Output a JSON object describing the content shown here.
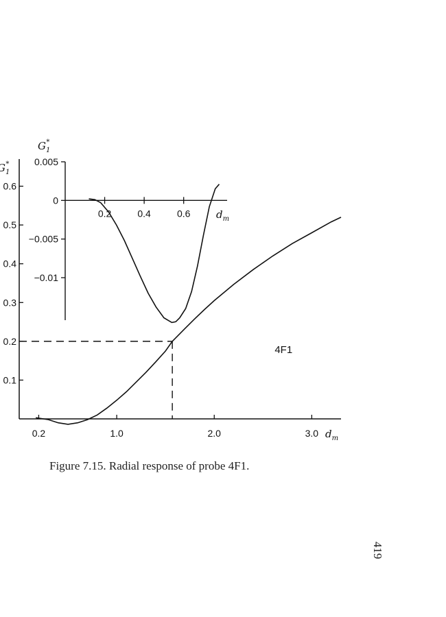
{
  "caption": "Figure 7.15. Radial response of probe 4F1.",
  "page_number": "419",
  "chart_data": [
    {
      "type": "line",
      "id": "main",
      "ylabel_base": "G",
      "ylabel_sub": "1",
      "ylabel_sup": "*",
      "xlabel_base": "d",
      "xlabel_sub": "m",
      "xlim": [
        0.0,
        3.3
      ],
      "ylim": [
        0.0,
        0.67
      ],
      "x_ticks": [
        {
          "value": 0.2,
          "label": "0.2"
        },
        {
          "value": 1.0,
          "label": "1.0"
        },
        {
          "value": 2.0,
          "label": "2.0"
        },
        {
          "value": 3.0,
          "label": "3.0"
        }
      ],
      "y_ticks": [
        {
          "value": 0.1,
          "label": "0.1"
        },
        {
          "value": 0.2,
          "label": "0.2"
        },
        {
          "value": 0.3,
          "label": "0.3"
        },
        {
          "value": 0.4,
          "label": "0.4"
        },
        {
          "value": 0.5,
          "label": "0.5"
        },
        {
          "value": 0.6,
          "label": "0.6"
        }
      ],
      "series": [
        {
          "x": [
            0.17,
            0.3,
            0.4,
            0.5,
            0.6,
            0.7,
            0.8,
            0.9,
            1.0,
            1.1,
            1.2,
            1.3,
            1.4,
            1.5,
            1.57,
            1.7,
            1.8,
            1.9,
            2.0,
            2.2,
            2.4,
            2.6,
            2.8,
            3.0,
            3.2,
            3.3
          ],
          "y": [
            0.003,
            -0.002,
            -0.01,
            -0.014,
            -0.01,
            -0.002,
            0.01,
            0.028,
            0.048,
            0.07,
            0.095,
            0.12,
            0.147,
            0.175,
            0.2,
            0.233,
            0.258,
            0.282,
            0.305,
            0.347,
            0.385,
            0.42,
            0.452,
            0.48,
            0.508,
            0.52
          ]
        }
      ],
      "annotation": {
        "text": "4F1",
        "x": 2.62,
        "y": 0.17
      },
      "marker_point": {
        "x": 1.57,
        "y": 0.2
      }
    },
    {
      "type": "line",
      "id": "inset",
      "ylabel_base": "G",
      "ylabel_sub": "1",
      "ylabel_sup": "*",
      "xlabel_base": "d",
      "xlabel_sub": "m",
      "xlim": [
        0.0,
        0.82
      ],
      "ylim": [
        -0.0155,
        0.005
      ],
      "x_ticks": [
        {
          "value": 0.2,
          "label": "0.2"
        },
        {
          "value": 0.4,
          "label": "0.4"
        },
        {
          "value": 0.6,
          "label": "0.6"
        }
      ],
      "y_ticks": [
        {
          "value": 0.005,
          "label": "0.005"
        },
        {
          "value": 0.0,
          "label": "0"
        },
        {
          "value": -0.005,
          "label": "−0.005"
        },
        {
          "value": -0.01,
          "label": "−0.01"
        }
      ],
      "series": [
        {
          "x": [
            0.12,
            0.15,
            0.18,
            0.22,
            0.26,
            0.3,
            0.34,
            0.38,
            0.42,
            0.46,
            0.5,
            0.54,
            0.56,
            0.58,
            0.61,
            0.64,
            0.67,
            0.7,
            0.73,
            0.76,
            0.78
          ],
          "y": [
            0.0002,
            0.0001,
            -0.0003,
            -0.0015,
            -0.0032,
            -0.0052,
            -0.0075,
            -0.0098,
            -0.012,
            -0.0138,
            -0.0152,
            -0.0158,
            -0.0157,
            -0.0152,
            -0.014,
            -0.0118,
            -0.0085,
            -0.0045,
            -0.0008,
            0.0015,
            0.0021
          ]
        }
      ]
    }
  ]
}
